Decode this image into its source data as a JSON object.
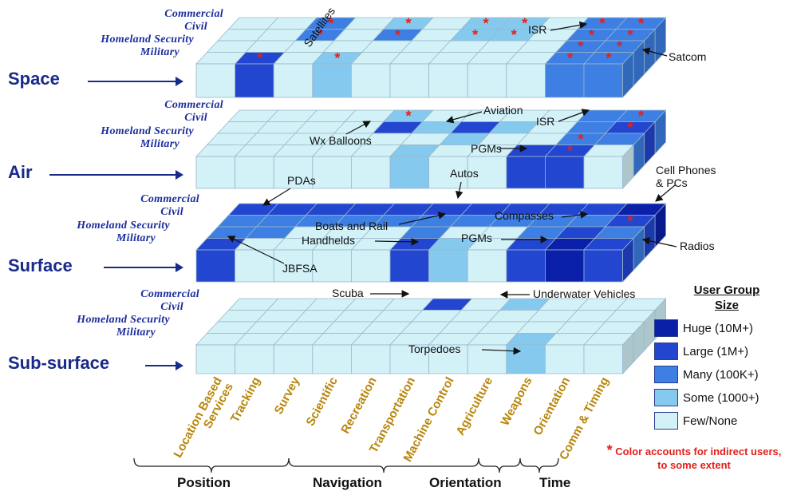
{
  "domains": [
    "Space",
    "Air",
    "Surface",
    "Sub-surface"
  ],
  "groups": [
    "Commercial",
    "Civil",
    "Homeland Security",
    "Military"
  ],
  "categories": [
    "Location Based\nServices",
    "Tracking",
    "Survey",
    "Scientific",
    "Recreation",
    "Transportation",
    "Machine Control",
    "Agriculture",
    "Weapons",
    "Orientation",
    "Comm & Timing"
  ],
  "bottom_groups": [
    "Position",
    "Navigation",
    "Orientation",
    "Time"
  ],
  "annotations": [
    "Satellites",
    "ISR",
    "Satcom",
    "Aviation",
    "ISR",
    "Wx Balloons",
    "PGMs",
    "PDAs",
    "Autos",
    "Cell Phones\n& PCs",
    "Boats and Rail",
    "Compasses",
    "Handhelds",
    "PGMs",
    "Radios",
    "JBFSA",
    "Scuba",
    "Underwater Vehicles",
    "Torpedoes"
  ],
  "legend": {
    "title": "User Group\nSize",
    "items": [
      {
        "label": "Huge (10M+)",
        "color": "#0a20a8"
      },
      {
        "label": "Large (1M+)",
        "color": "#2246d0"
      },
      {
        "label": "Many (100K+)",
        "color": "#3d7fe3"
      },
      {
        "label": "Some (1000+)",
        "color": "#86c9ee"
      },
      {
        "label": "Few/None",
        "color": "#d2f2f8"
      }
    ],
    "note_star": "*",
    "note": "Color accounts for indirect users, to some extent"
  },
  "colors": {
    "few": "#d2f2f8",
    "some": "#86c9ee",
    "many": "#3d7fe3",
    "large": "#2246d0",
    "huge": "#0a20a8",
    "star": "#e4201c",
    "text_dark": "#1a2a8a"
  },
  "cells": [
    {
      "domain": 0,
      "group": 3,
      "cat": 1,
      "level": "large"
    },
    {
      "domain": 0,
      "group": 3,
      "cat": 3,
      "level": "some"
    },
    {
      "domain": 0,
      "group": 3,
      "cat": 9,
      "level": "many"
    },
    {
      "domain": 0,
      "group": 3,
      "cat": 10,
      "level": "many"
    },
    {
      "domain": 0,
      "group": 2,
      "cat": 9,
      "level": "many"
    },
    {
      "domain": 0,
      "group": 2,
      "cat": 10,
      "level": "many"
    },
    {
      "domain": 0,
      "group": 1,
      "cat": 2,
      "level": "many"
    },
    {
      "domain": 0,
      "group": 1,
      "cat": 4,
      "level": "many"
    },
    {
      "domain": 0,
      "group": 1,
      "cat": 6,
      "level": "some"
    },
    {
      "domain": 0,
      "group": 1,
      "cat": 7,
      "level": "some"
    },
    {
      "domain": 0,
      "group": 1,
      "cat": 9,
      "level": "many"
    },
    {
      "domain": 0,
      "group": 1,
      "cat": 10,
      "level": "many"
    },
    {
      "domain": 0,
      "group": 0,
      "cat": 2,
      "level": "many"
    },
    {
      "domain": 0,
      "group": 0,
      "cat": 4,
      "level": "some"
    },
    {
      "domain": 0,
      "group": 0,
      "cat": 6,
      "level": "some"
    },
    {
      "domain": 0,
      "group": 0,
      "cat": 7,
      "level": "some"
    },
    {
      "domain": 0,
      "group": 0,
      "cat": 9,
      "level": "many"
    },
    {
      "domain": 0,
      "group": 0,
      "cat": 10,
      "level": "many"
    },
    {
      "domain": 1,
      "group": 3,
      "cat": 5,
      "level": "some"
    },
    {
      "domain": 1,
      "group": 3,
      "cat": 8,
      "level": "large"
    },
    {
      "domain": 1,
      "group": 3,
      "cat": 9,
      "level": "large"
    },
    {
      "domain": 1,
      "group": 2,
      "cat": 6,
      "level": "some"
    },
    {
      "domain": 1,
      "group": 2,
      "cat": 9,
      "level": "many"
    },
    {
      "domain": 1,
      "group": 2,
      "cat": 10,
      "level": "many"
    },
    {
      "domain": 1,
      "group": 1,
      "cat": 4,
      "level": "large"
    },
    {
      "domain": 1,
      "group": 1,
      "cat": 6,
      "level": "large"
    },
    {
      "domain": 1,
      "group": 1,
      "cat": 5,
      "level": "some"
    },
    {
      "domain": 1,
      "group": 1,
      "cat": 7,
      "level": "some"
    },
    {
      "domain": 1,
      "group": 1,
      "cat": 9,
      "level": "many"
    },
    {
      "domain": 1,
      "group": 1,
      "cat": 10,
      "level": "large"
    },
    {
      "domain": 1,
      "group": 0,
      "cat": 4,
      "level": "some"
    },
    {
      "domain": 1,
      "group": 0,
      "cat": 9,
      "level": "many"
    },
    {
      "domain": 1,
      "group": 0,
      "cat": 10,
      "level": "many"
    },
    {
      "domain": 2,
      "group": 3,
      "cat": 0,
      "level": "large"
    },
    {
      "domain": 2,
      "group": 3,
      "cat": 5,
      "level": "large"
    },
    {
      "domain": 2,
      "group": 3,
      "cat": 6,
      "level": "some"
    },
    {
      "domain": 2,
      "group": 3,
      "cat": 8,
      "level": "large"
    },
    {
      "domain": 2,
      "group": 3,
      "cat": 9,
      "level": "huge"
    },
    {
      "domain": 2,
      "group": 3,
      "cat": 10,
      "level": "large"
    },
    {
      "domain": 2,
      "group": 2,
      "cat": 0,
      "level": "many"
    },
    {
      "domain": 2,
      "group": 2,
      "cat": 1,
      "level": "many"
    },
    {
      "domain": 2,
      "group": 2,
      "cat": 5,
      "level": "many"
    },
    {
      "domain": 2,
      "group": 2,
      "cat": 8,
      "level": "many"
    },
    {
      "domain": 2,
      "group": 2,
      "cat": 9,
      "level": "large"
    },
    {
      "domain": 2,
      "group": 2,
      "cat": 10,
      "level": "many"
    },
    {
      "domain": 2,
      "group": 1,
      "cat": 0,
      "level": "many"
    },
    {
      "domain": 2,
      "group": 1,
      "cat": 1,
      "level": "many"
    },
    {
      "domain": 2,
      "group": 1,
      "cat": 2,
      "level": "many"
    },
    {
      "domain": 2,
      "group": 1,
      "cat": 3,
      "level": "many"
    },
    {
      "domain": 2,
      "group": 1,
      "cat": 4,
      "level": "many"
    },
    {
      "domain": 2,
      "group": 1,
      "cat": 5,
      "level": "many"
    },
    {
      "domain": 2,
      "group": 1,
      "cat": 6,
      "level": "many"
    },
    {
      "domain": 2,
      "group": 1,
      "cat": 7,
      "level": "many"
    },
    {
      "domain": 2,
      "group": 1,
      "cat": 8,
      "level": "many"
    },
    {
      "domain": 2,
      "group": 1,
      "cat": 9,
      "level": "many"
    },
    {
      "domain": 2,
      "group": 1,
      "cat": 10,
      "level": "large"
    },
    {
      "domain": 2,
      "group": 0,
      "cat": 0,
      "level": "large"
    },
    {
      "domain": 2,
      "group": 0,
      "cat": 1,
      "level": "large"
    },
    {
      "domain": 2,
      "group": 0,
      "cat": 2,
      "level": "large"
    },
    {
      "domain": 2,
      "group": 0,
      "cat": 3,
      "level": "large"
    },
    {
      "domain": 2,
      "group": 0,
      "cat": 4,
      "level": "large"
    },
    {
      "domain": 2,
      "group": 0,
      "cat": 5,
      "level": "large"
    },
    {
      "domain": 2,
      "group": 0,
      "cat": 6,
      "level": "large"
    },
    {
      "domain": 2,
      "group": 0,
      "cat": 7,
      "level": "large"
    },
    {
      "domain": 2,
      "group": 0,
      "cat": 8,
      "level": "large"
    },
    {
      "domain": 2,
      "group": 0,
      "cat": 9,
      "level": "large"
    },
    {
      "domain": 2,
      "group": 0,
      "cat": 10,
      "level": "huge"
    },
    {
      "domain": 3,
      "group": 3,
      "cat": 8,
      "level": "some"
    },
    {
      "domain": 3,
      "group": 0,
      "cat": 5,
      "level": "large"
    },
    {
      "domain": 3,
      "group": 0,
      "cat": 7,
      "level": "some"
    }
  ],
  "stars": [
    {
      "domain": 0,
      "group": 0,
      "cat": 2
    },
    {
      "domain": 0,
      "group": 0,
      "cat": 4
    },
    {
      "domain": 0,
      "group": 0,
      "cat": 6
    },
    {
      "domain": 0,
      "group": 0,
      "cat": 7
    },
    {
      "domain": 0,
      "group": 0,
      "cat": 9
    },
    {
      "domain": 0,
      "group": 0,
      "cat": 10
    },
    {
      "domain": 0,
      "group": 1,
      "cat": 2
    },
    {
      "domain": 0,
      "group": 1,
      "cat": 4
    },
    {
      "domain": 0,
      "group": 1,
      "cat": 6
    },
    {
      "domain": 0,
      "group": 1,
      "cat": 7
    },
    {
      "domain": 0,
      "group": 1,
      "cat": 9
    },
    {
      "domain": 0,
      "group": 1,
      "cat": 10
    },
    {
      "domain": 0,
      "group": 2,
      "cat": 9
    },
    {
      "domain": 0,
      "group": 2,
      "cat": 10
    },
    {
      "domain": 0,
      "group": 3,
      "cat": 1
    },
    {
      "domain": 0,
      "group": 3,
      "cat": 3
    },
    {
      "domain": 0,
      "group": 3,
      "cat": 9
    },
    {
      "domain": 0,
      "group": 3,
      "cat": 10
    },
    {
      "domain": 1,
      "group": 0,
      "cat": 4
    },
    {
      "domain": 1,
      "group": 0,
      "cat": 10
    },
    {
      "domain": 1,
      "group": 1,
      "cat": 10
    },
    {
      "domain": 1,
      "group": 2,
      "cat": 9
    },
    {
      "domain": 1,
      "group": 3,
      "cat": 9
    },
    {
      "domain": 2,
      "group": 1,
      "cat": 10
    }
  ]
}
